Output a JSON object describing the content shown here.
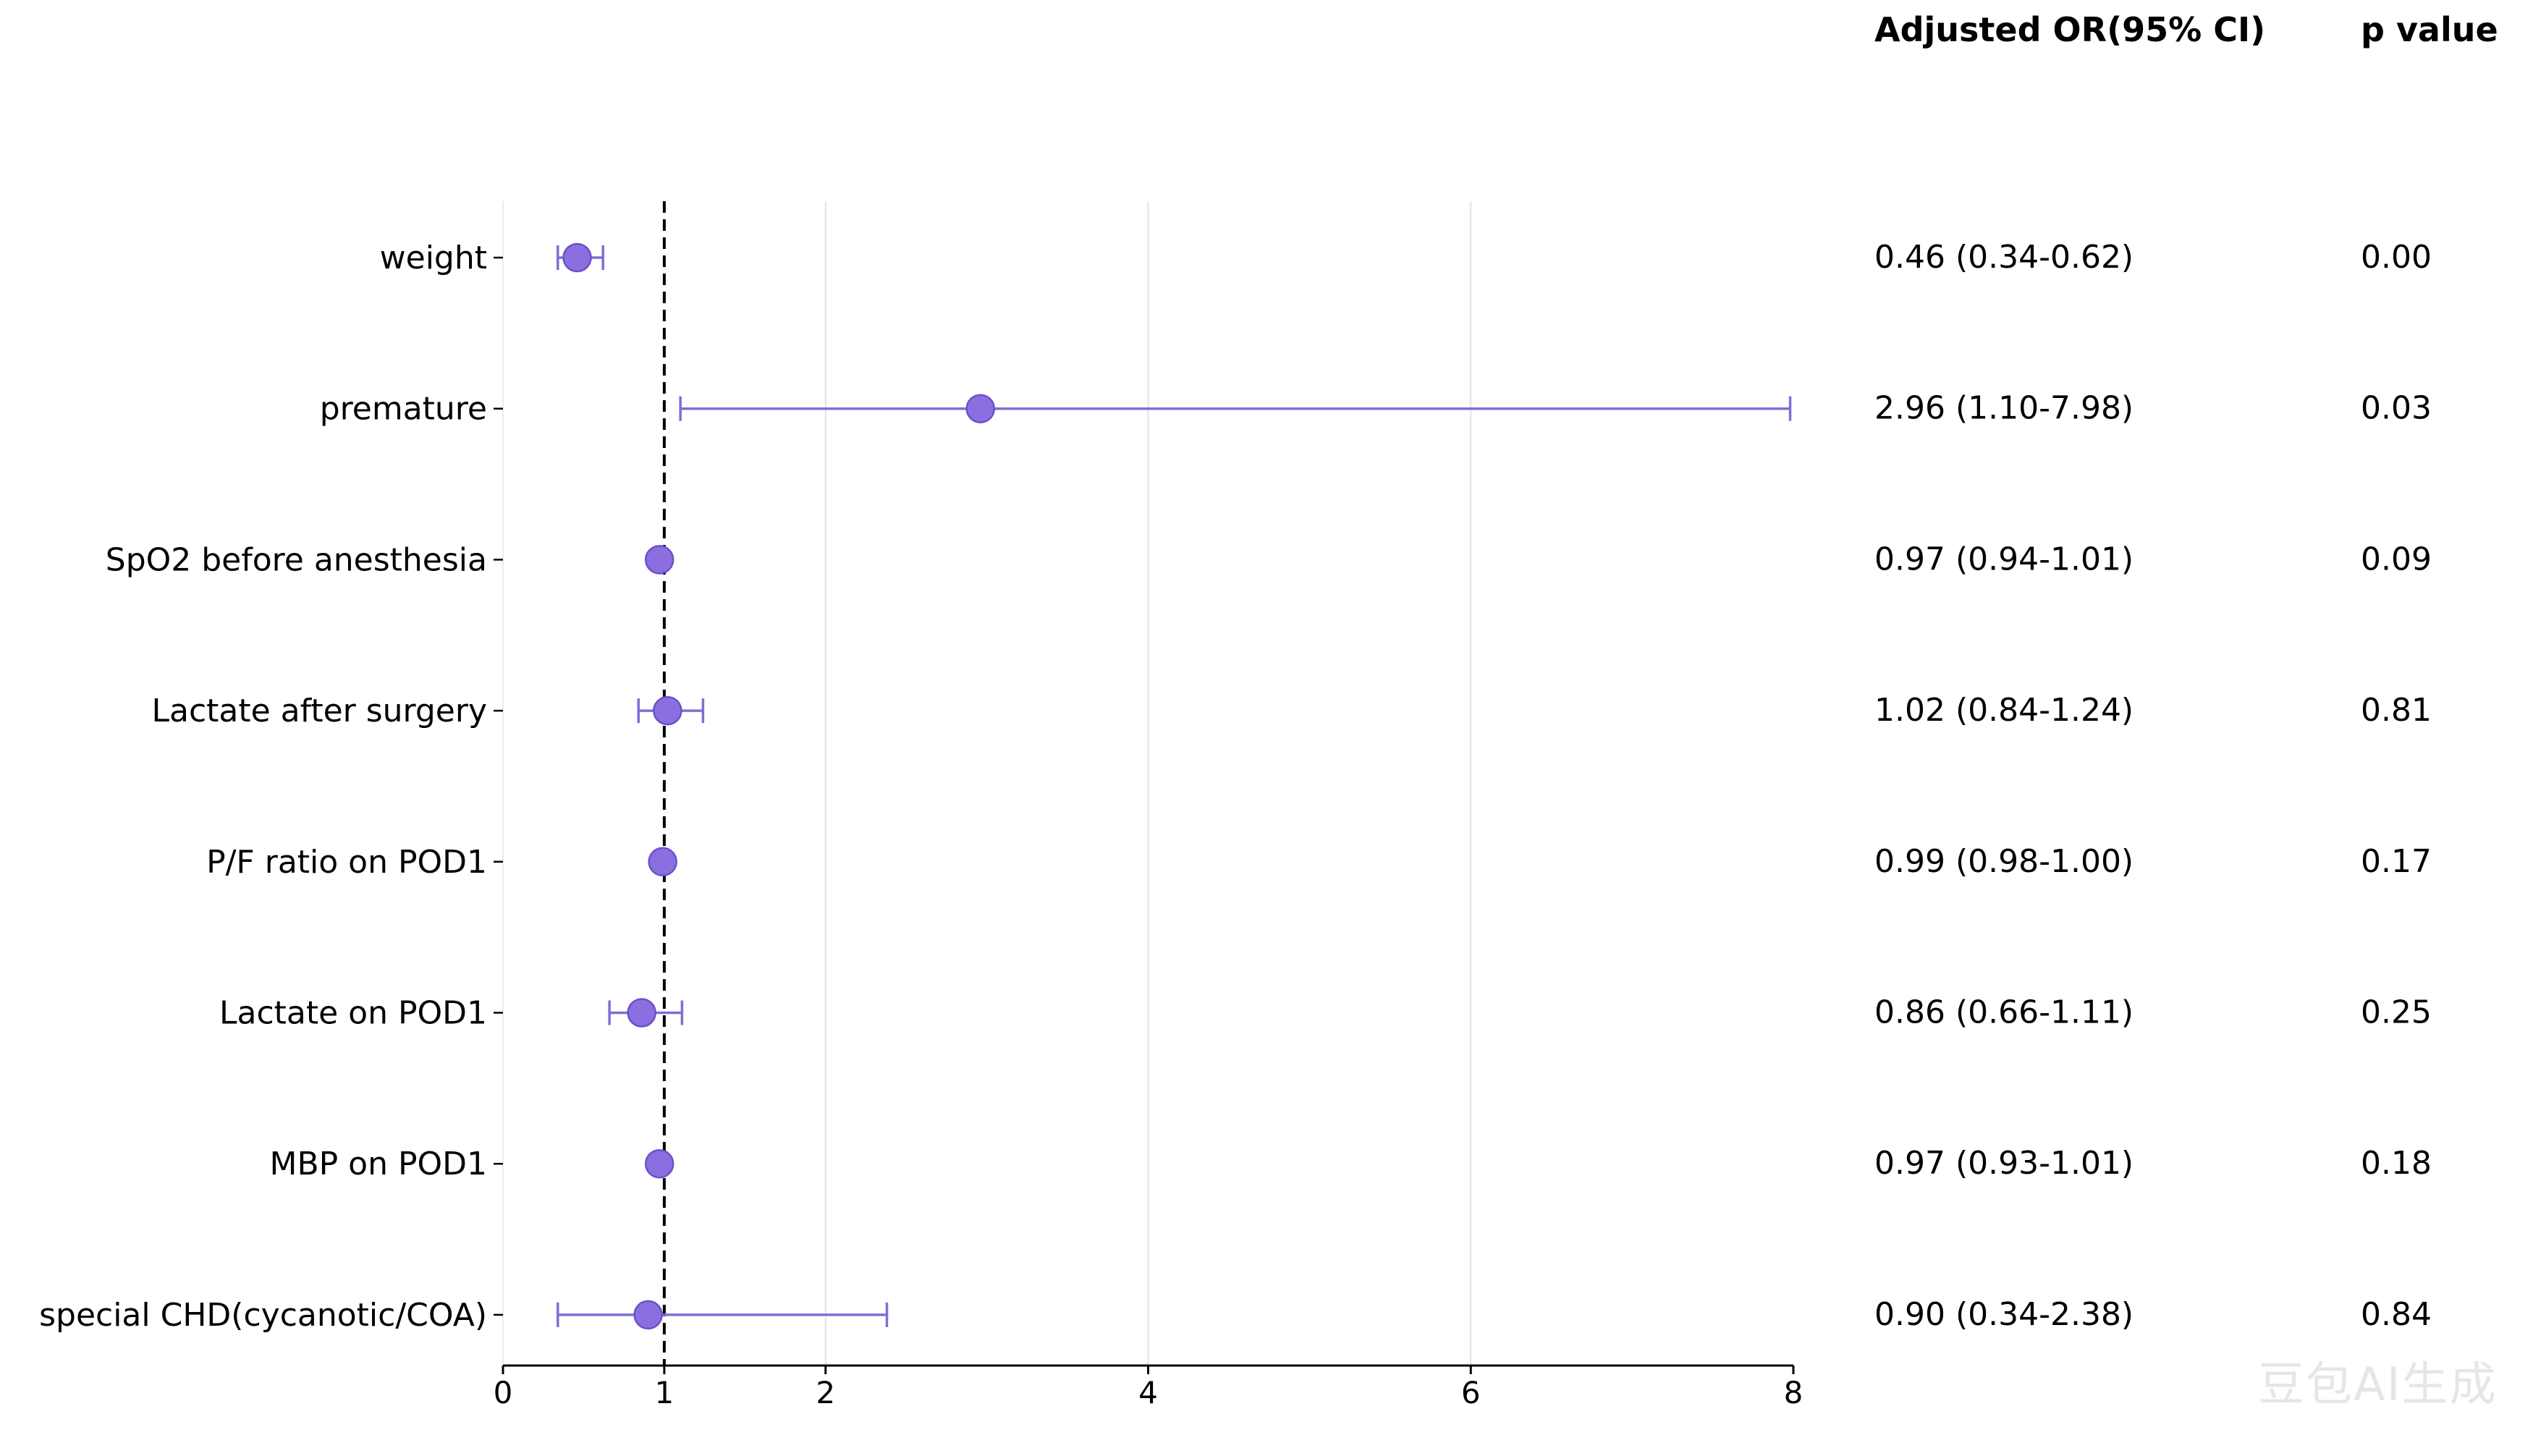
{
  "headers": {
    "or_col": "Adjusted OR(95% CI)",
    "p_col": "p value"
  },
  "watermark": "豆包AI生成",
  "chart_data": {
    "type": "forest",
    "reference_line": 1,
    "xlim": [
      0,
      8
    ],
    "xticks": [
      0,
      1,
      2,
      4,
      6,
      8
    ],
    "grid_x": [
      2,
      4,
      6
    ],
    "xlabel": "",
    "ylabel": "",
    "title": "",
    "marker_color": "#8b6fe0",
    "ci_color": "#7e6fd6",
    "rows": [
      {
        "label": "weight",
        "or": 0.46,
        "lo": 0.34,
        "hi": 0.62,
        "or_text": "0.46 (0.34-0.62)",
        "p": "0.00"
      },
      {
        "label": "premature",
        "or": 2.96,
        "lo": 1.1,
        "hi": 7.98,
        "or_text": "2.96 (1.10-7.98)",
        "p": "0.03"
      },
      {
        "label": "SpO2 before anesthesia",
        "or": 0.97,
        "lo": 0.94,
        "hi": 1.01,
        "or_text": "0.97 (0.94-1.01)",
        "p": "0.09"
      },
      {
        "label": "Lactate after surgery",
        "or": 1.02,
        "lo": 0.84,
        "hi": 1.24,
        "or_text": "1.02 (0.84-1.24)",
        "p": "0.81"
      },
      {
        "label": "P/F ratio on POD1",
        "or": 0.99,
        "lo": 0.98,
        "hi": 1.0,
        "or_text": "0.99 (0.98-1.00)",
        "p": "0.17"
      },
      {
        "label": "Lactate on POD1",
        "or": 0.86,
        "lo": 0.66,
        "hi": 1.11,
        "or_text": "0.86 (0.66-1.11)",
        "p": "0.25"
      },
      {
        "label": "MBP on POD1",
        "or": 0.97,
        "lo": 0.93,
        "hi": 1.01,
        "or_text": "0.97 (0.93-1.01)",
        "p": "0.18"
      },
      {
        "label": "special CHD(cycanotic/COA)",
        "or": 0.9,
        "lo": 0.34,
        "hi": 2.38,
        "or_text": "0.90 (0.34-2.38)",
        "p": "0.84"
      }
    ]
  }
}
